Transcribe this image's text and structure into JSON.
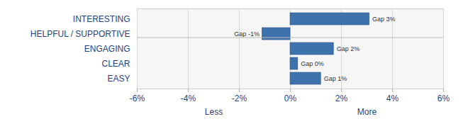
{
  "chart_data": {
    "type": "bar",
    "orientation": "horizontal",
    "categories": [
      "INTERESTING",
      "HELPFUL / SUPPORTIVE",
      "ENGAGING",
      "CLEAR",
      "EASY"
    ],
    "values": [
      3.1,
      -1.1,
      1.7,
      0.3,
      1.2
    ],
    "value_labels": [
      "Gap 3%",
      "Gap -1%",
      "Gap 2%",
      "Gap 0%",
      "Gap 1%"
    ],
    "data_labels": true,
    "color": "#3d72ad",
    "xlim": [
      -6,
      6
    ],
    "xticks": [
      {
        "value": -6,
        "label": "-6%"
      },
      {
        "value": -4,
        "label": "-4%"
      },
      {
        "value": -2,
        "label": "-2%"
      },
      {
        "value": 0,
        "label": "0%"
      },
      {
        "value": 2,
        "label": "2%"
      },
      {
        "value": 4,
        "label": "4%"
      },
      {
        "value": 6,
        "label": "6%"
      }
    ],
    "annotations": [
      {
        "text": "Less",
        "x": -3
      },
      {
        "text": "More",
        "x": 3
      }
    ],
    "grid": true
  }
}
